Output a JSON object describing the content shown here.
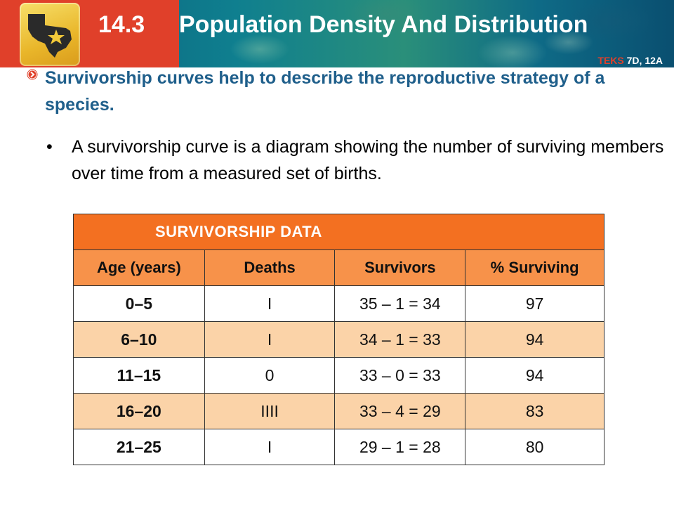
{
  "header": {
    "section_number": "14.3",
    "title": "Population Density And Distribution",
    "teks_label": "TEKS",
    "teks_codes": "7D, 12A",
    "logo_icon": "texas-star-icon",
    "colors": {
      "red": "#e0402a",
      "gold": "#e9b62a"
    }
  },
  "main_point": {
    "text": "Survivorship curves help to describe the reproductive strategy of a species.",
    "bullet_icon": "red-circle-arrow-icon"
  },
  "sub_point": {
    "bullet": "•",
    "text": "A survivorship curve is a diagram showing the number of surviving members over time from a measured set of births."
  },
  "table": {
    "caption": "SURVIVORSHIP DATA",
    "headers": [
      "Age (years)",
      "Deaths",
      "Survivors",
      "% Surviving"
    ],
    "rows": [
      [
        "0–5",
        "I",
        "35 – 1 = 34",
        "97"
      ],
      [
        "6–10",
        "I",
        "34 – 1 = 33",
        "94"
      ],
      [
        "11–15",
        "0",
        "33 – 0 = 33",
        "94"
      ],
      [
        "16–20",
        "IIII",
        "33 – 4 = 29",
        "83"
      ],
      [
        "21–25",
        "I",
        "29 – 1 = 28",
        "80"
      ]
    ],
    "colors": {
      "caption": "#f37021",
      "header": "#f7924a",
      "alt_row": "#fbd3a8"
    }
  }
}
